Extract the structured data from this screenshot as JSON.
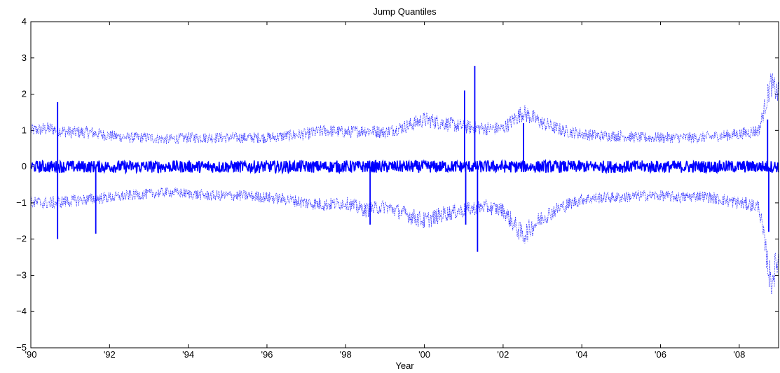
{
  "chart_data": {
    "type": "line",
    "title": "Jump Quantiles",
    "xlabel": "Year",
    "ylabel": "",
    "xlim": [
      1990,
      2009
    ],
    "ylim": [
      -5,
      4
    ],
    "x_ticks": [
      {
        "value": 1990,
        "label": "'90"
      },
      {
        "value": 1992,
        "label": "'92"
      },
      {
        "value": 1994,
        "label": "'94"
      },
      {
        "value": 1996,
        "label": "'96"
      },
      {
        "value": 1998,
        "label": "'98"
      },
      {
        "value": 2000,
        "label": "'00"
      },
      {
        "value": 2002,
        "label": "'02"
      },
      {
        "value": 2004,
        "label": "'04"
      },
      {
        "value": 2006,
        "label": "'06"
      },
      {
        "value": 2008,
        "label": "'08"
      }
    ],
    "y_ticks": [
      {
        "value": -5,
        "label": "−5"
      },
      {
        "value": -4,
        "label": "−4"
      },
      {
        "value": -3,
        "label": "−3"
      },
      {
        "value": -2,
        "label": "−2"
      },
      {
        "value": -1,
        "label": "−1"
      },
      {
        "value": 0,
        "label": "0"
      },
      {
        "value": 1,
        "label": "1"
      },
      {
        "value": 2,
        "label": "2"
      },
      {
        "value": 3,
        "label": "3"
      },
      {
        "value": 4,
        "label": "4"
      }
    ],
    "grid": false,
    "color": "#0000ff",
    "series": [
      {
        "style": "dotted",
        "x": [
          1990.0,
          1990.5,
          1991.0,
          1991.5,
          1992.0,
          1992.5,
          1993.0,
          1993.5,
          1994.0,
          1994.5,
          1995.0,
          1995.5,
          1996.0,
          1996.5,
          1997.0,
          1997.5,
          1998.0,
          1998.5,
          1999.0,
          1999.5,
          2000.0,
          2000.5,
          2001.0,
          2001.5,
          2002.0,
          2002.5,
          2003.0,
          2003.5,
          2004.0,
          2004.5,
          2005.0,
          2005.5,
          2006.0,
          2006.5,
          2007.0,
          2007.5,
          2008.0,
          2008.5,
          2008.8,
          2009.0
        ],
        "values": [
          1.0,
          1.05,
          0.95,
          0.95,
          0.85,
          0.8,
          0.8,
          0.75,
          0.8,
          0.8,
          0.8,
          0.8,
          0.8,
          0.85,
          0.9,
          1.0,
          0.95,
          1.0,
          0.95,
          1.1,
          1.3,
          1.2,
          1.1,
          1.05,
          1.05,
          1.5,
          1.2,
          1.0,
          0.9,
          0.85,
          0.85,
          0.8,
          0.8,
          0.8,
          0.8,
          0.85,
          0.9,
          1.0,
          2.3,
          2.0
        ]
      },
      {
        "style": "solid",
        "x": [
          1990.0,
          1990.5,
          1991.0,
          1991.5,
          1992.0,
          1992.5,
          1993.0,
          1993.5,
          1994.0,
          1994.5,
          1995.0,
          1995.5,
          1996.0,
          1996.5,
          1997.0,
          1997.5,
          1998.0,
          1998.5,
          1999.0,
          1999.5,
          2000.0,
          2000.5,
          2001.0,
          2001.5,
          2002.0,
          2002.5,
          2003.0,
          2003.5,
          2004.0,
          2004.5,
          2005.0,
          2005.5,
          2006.0,
          2006.5,
          2007.0,
          2007.5,
          2008.0,
          2008.5,
          2008.8,
          2009.0
        ],
        "values": [
          0.0,
          0.0,
          0.0,
          0.0,
          0.0,
          0.0,
          0.0,
          0.0,
          0.0,
          0.0,
          0.0,
          0.0,
          0.0,
          0.0,
          0.0,
          0.0,
          0.0,
          0.0,
          0.0,
          0.0,
          0.0,
          0.0,
          0.0,
          0.0,
          0.0,
          0.0,
          0.0,
          0.0,
          0.0,
          0.0,
          0.0,
          0.0,
          0.0,
          0.0,
          0.0,
          0.0,
          0.0,
          0.0,
          0.0,
          0.0
        ]
      },
      {
        "style": "dotted",
        "x": [
          1990.0,
          1990.5,
          1991.0,
          1991.5,
          1992.0,
          1992.5,
          1993.0,
          1993.5,
          1994.0,
          1994.5,
          1995.0,
          1995.5,
          1996.0,
          1996.5,
          1997.0,
          1997.5,
          1998.0,
          1998.5,
          1999.0,
          1999.5,
          2000.0,
          2000.5,
          2001.0,
          2001.5,
          2002.0,
          2002.5,
          2003.0,
          2003.5,
          2004.0,
          2004.5,
          2005.0,
          2005.5,
          2006.0,
          2006.5,
          2007.0,
          2007.5,
          2008.0,
          2008.5,
          2008.8,
          2009.0
        ],
        "values": [
          -1.0,
          -1.0,
          -0.95,
          -0.9,
          -0.85,
          -0.8,
          -0.75,
          -0.7,
          -0.75,
          -0.8,
          -0.8,
          -0.8,
          -0.85,
          -0.9,
          -1.0,
          -1.05,
          -1.0,
          -1.2,
          -1.1,
          -1.3,
          -1.5,
          -1.3,
          -1.2,
          -1.1,
          -1.2,
          -1.9,
          -1.4,
          -1.1,
          -0.9,
          -0.85,
          -0.85,
          -0.8,
          -0.8,
          -0.85,
          -0.8,
          -0.9,
          -1.0,
          -1.1,
          -3.2,
          -2.5
        ]
      }
    ],
    "jumps": [
      {
        "x": 1990.68,
        "value": 1.78
      },
      {
        "x": 1990.68,
        "value": -2.0
      },
      {
        "x": 1991.65,
        "value": -1.85
      },
      {
        "x": 1998.62,
        "value": -1.6
      },
      {
        "x": 2001.02,
        "value": 2.1
      },
      {
        "x": 2001.05,
        "value": -1.6
      },
      {
        "x": 2001.28,
        "value": 2.78
      },
      {
        "x": 2001.35,
        "value": -2.35
      },
      {
        "x": 2002.52,
        "value": 1.2
      },
      {
        "x": 2008.72,
        "value": 1.3
      },
      {
        "x": 2008.75,
        "value": -1.8
      }
    ]
  }
}
